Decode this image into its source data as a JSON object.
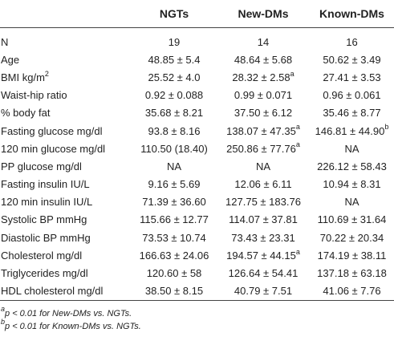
{
  "table": {
    "headers": [
      "",
      "NGTs",
      "New-DMs",
      "Known-DMs"
    ],
    "rows": [
      {
        "label": "N",
        "unit_sup": "",
        "cells": [
          {
            "v": "19",
            "s": ""
          },
          {
            "v": "14",
            "s": ""
          },
          {
            "v": "16",
            "s": ""
          }
        ]
      },
      {
        "label": "Age",
        "unit_sup": "",
        "cells": [
          {
            "v": "48.85 ± 5.4",
            "s": ""
          },
          {
            "v": "48.64 ± 5.68",
            "s": ""
          },
          {
            "v": "50.62 ± 3.49",
            "s": ""
          }
        ]
      },
      {
        "label": "BMI kg/m",
        "unit_sup": "2",
        "cells": [
          {
            "v": "25.52 ± 4.0",
            "s": ""
          },
          {
            "v": "28.32 ± 2.58",
            "s": "a"
          },
          {
            "v": "27.41 ± 3.53",
            "s": ""
          }
        ]
      },
      {
        "label": "Waist-hip ratio",
        "unit_sup": "",
        "cells": [
          {
            "v": "0.92 ± 0.088",
            "s": ""
          },
          {
            "v": "0.99 ± 0.071",
            "s": ""
          },
          {
            "v": "0.96 ± 0.061",
            "s": ""
          }
        ]
      },
      {
        "label": "% body fat",
        "unit_sup": "",
        "cells": [
          {
            "v": "35.68 ± 8.21",
            "s": ""
          },
          {
            "v": "37.50 ± 6.12",
            "s": ""
          },
          {
            "v": "35.46 ± 8.77",
            "s": ""
          }
        ]
      },
      {
        "label": "Fasting glucose mg/dl",
        "unit_sup": "",
        "cells": [
          {
            "v": "93.8 ± 8.16",
            "s": ""
          },
          {
            "v": "138.07 ± 47.35",
            "s": "a"
          },
          {
            "v": "146.81 ± 44.90",
            "s": "b"
          }
        ]
      },
      {
        "label": "120 min glucose mg/dl",
        "unit_sup": "",
        "cells": [
          {
            "v": "110.50 (18.40)",
            "s": ""
          },
          {
            "v": "250.86 ± 77.76",
            "s": "a"
          },
          {
            "v": "NA",
            "s": ""
          }
        ]
      },
      {
        "label": "PP glucose mg/dl",
        "unit_sup": "",
        "cells": [
          {
            "v": "NA",
            "s": ""
          },
          {
            "v": "NA",
            "s": ""
          },
          {
            "v": "226.12 ± 58.43",
            "s": ""
          }
        ]
      },
      {
        "label": "Fasting insulin IU/L",
        "unit_sup": "",
        "cells": [
          {
            "v": "9.16 ± 5.69",
            "s": ""
          },
          {
            "v": "12.06 ± 6.11",
            "s": ""
          },
          {
            "v": "10.94 ± 8.31",
            "s": ""
          }
        ]
      },
      {
        "label": "120 min insulin IU/L",
        "unit_sup": "",
        "cells": [
          {
            "v": "71.39 ± 36.60",
            "s": ""
          },
          {
            "v": "127.75 ± 183.76",
            "s": ""
          },
          {
            "v": "NA",
            "s": ""
          }
        ]
      },
      {
        "label": "Systolic BP mmHg",
        "unit_sup": "",
        "cells": [
          {
            "v": "115.66 ± 12.77",
            "s": ""
          },
          {
            "v": "114.07 ± 37.81",
            "s": ""
          },
          {
            "v": "110.69 ± 31.64",
            "s": ""
          }
        ]
      },
      {
        "label": "Diastolic BP mmHg",
        "unit_sup": "",
        "cells": [
          {
            "v": "73.53 ± 10.74",
            "s": ""
          },
          {
            "v": "73.43 ± 23.31",
            "s": ""
          },
          {
            "v": "70.22 ± 20.34",
            "s": ""
          }
        ]
      },
      {
        "label": "Cholesterol mg/dl",
        "unit_sup": "",
        "cells": [
          {
            "v": "166.63 ± 24.06",
            "s": ""
          },
          {
            "v": "194.57 ± 44.15",
            "s": "a"
          },
          {
            "v": "174.19 ± 38.11",
            "s": ""
          }
        ]
      },
      {
        "label": "Triglycerides mg/dl",
        "unit_sup": "",
        "cells": [
          {
            "v": "120.60 ± 58",
            "s": ""
          },
          {
            "v": "126.64 ± 54.41",
            "s": ""
          },
          {
            "v": "137.18 ± 63.18",
            "s": ""
          }
        ]
      },
      {
        "label": "HDL cholesterol mg/dl",
        "unit_sup": "",
        "cells": [
          {
            "v": "38.50 ± 8.15",
            "s": ""
          },
          {
            "v": "40.79 ± 7.51",
            "s": ""
          },
          {
            "v": "41.06 ± 7.76",
            "s": ""
          }
        ]
      }
    ]
  },
  "footnotes": [
    {
      "mark": "a",
      "text": "p < 0.01 for New-DMs vs. NGTs."
    },
    {
      "mark": "b",
      "text": "p < 0.01 for Known-DMs vs. NGTs."
    }
  ]
}
